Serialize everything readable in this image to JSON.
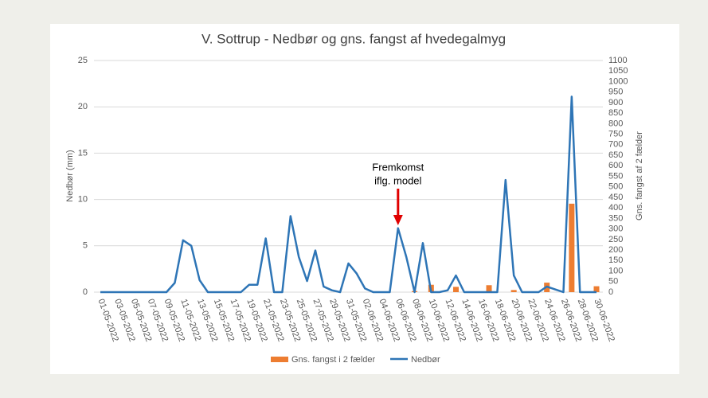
{
  "chart_data": {
    "type": "bar-line",
    "title": "V. Sottrup - Nedbør og gns. fangst af hvedegalmyg",
    "y_label": "Nedbør (mm)",
    "y2_label": "Gns. fangst af 2 fælder",
    "annotation": {
      "lines": [
        "Fremkomst",
        "iflg. model"
      ],
      "index": 36,
      "color": "#e00000"
    },
    "categories": [
      "01-05-2022",
      null,
      "03-05-2022",
      null,
      "05-05-2022",
      null,
      "07-05-2022",
      null,
      "09-05-2022",
      null,
      "11-05-2022",
      null,
      "13-05-2022",
      null,
      "15-05-2022",
      null,
      "17-05-2022",
      null,
      "19-05-2022",
      null,
      "21-05-2022",
      null,
      "23-05-2022",
      null,
      "25-05-2022",
      null,
      "27-05-2022",
      null,
      "29-05-2022",
      null,
      "31-05-2022",
      null,
      "02-06-2022",
      null,
      "04-06-2022",
      null,
      "06-06-2022",
      null,
      "08-06-2022",
      null,
      "10-06-2022",
      null,
      "12-06-2022",
      null,
      "14-06-2022",
      null,
      "16-06-2022",
      null,
      "18-06-2022",
      null,
      "20-06-2022",
      null,
      "22-06-2022",
      null,
      "24-06-2022",
      null,
      "26-06-2022",
      null,
      "28-06-2022",
      null,
      "30-06-2022"
    ],
    "series": [
      {
        "name": "Gns. fangst i 2 fælder",
        "type": "bar",
        "axis": "y2",
        "color": "#ed7d31",
        "values": [
          0,
          0,
          0,
          0,
          0,
          0,
          0,
          0,
          0,
          0,
          0,
          0,
          0,
          0,
          0,
          0,
          0,
          0,
          0,
          0,
          0,
          0,
          0,
          0,
          0,
          0,
          0,
          0,
          0,
          0,
          0,
          0,
          0,
          0,
          0,
          0,
          0,
          0,
          5,
          0,
          35,
          0,
          0,
          25,
          0,
          0,
          0,
          33,
          0,
          0,
          10,
          0,
          0,
          0,
          45,
          0,
          0,
          420,
          0,
          0,
          28
        ]
      },
      {
        "name": "Nedbør",
        "type": "line",
        "axis": "y",
        "color": "#2e75b6",
        "values": [
          0,
          0,
          0,
          0,
          0,
          0,
          0,
          0,
          0,
          1.0,
          5.6,
          5.0,
          1.3,
          0,
          0,
          0,
          0,
          0,
          0.8,
          0.8,
          5.8,
          0,
          0,
          8.2,
          3.8,
          1.2,
          4.5,
          0.6,
          0.2,
          0,
          3.1,
          2.0,
          0.4,
          0,
          0,
          0,
          6.9,
          3.8,
          0,
          5.3,
          0,
          0,
          0.2,
          1.8,
          0,
          0,
          0,
          0,
          0,
          12.1,
          1.8,
          0,
          0,
          0,
          0.6,
          0.3,
          0,
          21.1,
          0,
          0,
          0
        ]
      }
    ],
    "ylim": [
      0,
      25
    ],
    "yticks": [
      0,
      5,
      10,
      15,
      20,
      25
    ],
    "y2lim": [
      0,
      1100
    ],
    "y2ticks": [
      0,
      50,
      100,
      150,
      200,
      250,
      300,
      350,
      400,
      450,
      500,
      550,
      600,
      650,
      700,
      750,
      800,
      850,
      900,
      950,
      1000,
      1050,
      1100
    ],
    "grid": true,
    "legend": "bottom"
  }
}
